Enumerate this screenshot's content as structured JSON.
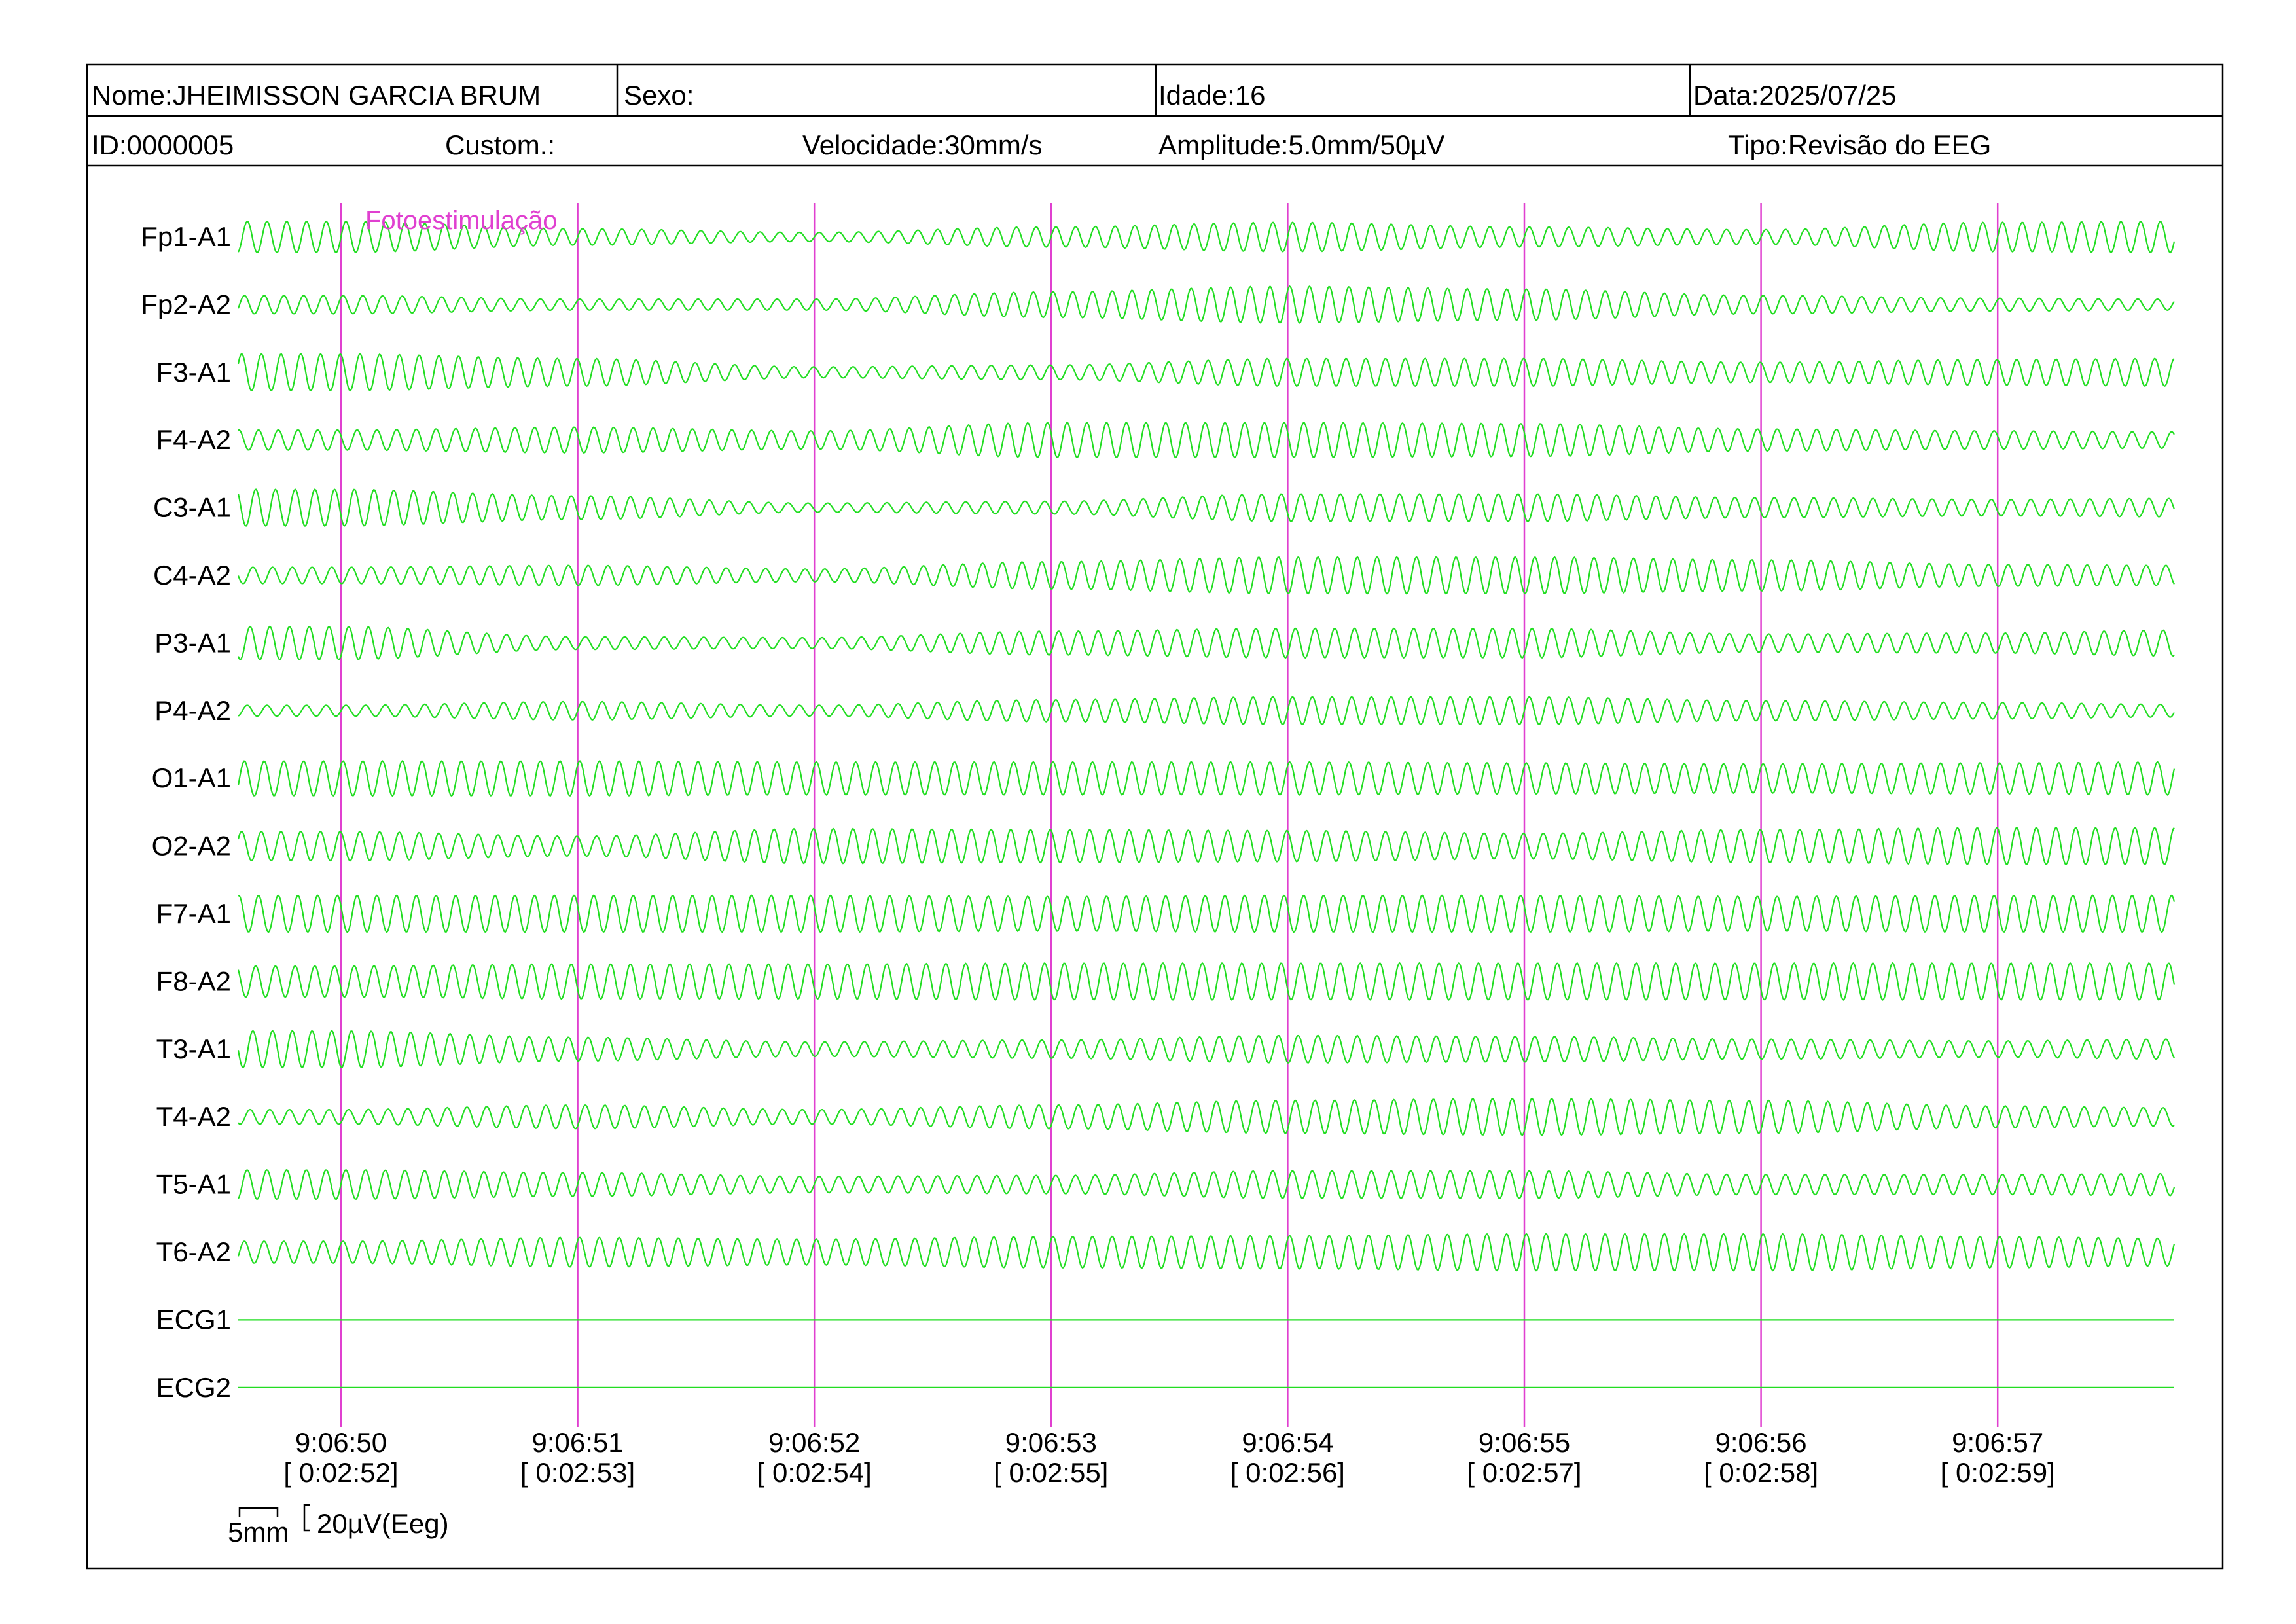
{
  "header": {
    "name": "Nome:JHEIMISSON GARCIA BRUM",
    "sex": "Sexo:",
    "age": "Idade:16",
    "date": "Data:2025/07/25",
    "id": "ID:0000005",
    "custom": "Custom.:",
    "speed": "Velocidade:30mm/s",
    "amplitude": "Amplitude:5.0mm/50µV",
    "type": "Tipo:Revisão do EEG"
  },
  "colors": {
    "trace": "#22dd22",
    "marker": "#e040d0",
    "border": "#000000"
  },
  "scale": {
    "time_bar": "5mm",
    "amp_bar": "20µV(Eeg)"
  },
  "chart_data": {
    "type": "line",
    "title": "",
    "xlabel": "",
    "ylabel": "",
    "grid": false,
    "event": {
      "label": "Fotoestimulação",
      "time": "9:06:50"
    },
    "time_ticks": [
      {
        "clock": "9:06:50",
        "elapsed": "[ 0:02:52]"
      },
      {
        "clock": "9:06:51",
        "elapsed": "[ 0:02:53]"
      },
      {
        "clock": "9:06:52",
        "elapsed": "[ 0:02:54]"
      },
      {
        "clock": "9:06:53",
        "elapsed": "[ 0:02:55]"
      },
      {
        "clock": "9:06:54",
        "elapsed": "[ 0:02:56]"
      },
      {
        "clock": "9:06:55",
        "elapsed": "[ 0:02:57]"
      },
      {
        "clock": "9:06:56",
        "elapsed": "[ 0:02:58]"
      },
      {
        "clock": "9:06:57",
        "elapsed": "[ 0:02:59]"
      }
    ],
    "x_range_seconds": [
      -0.43,
      7.73
    ],
    "wave_frequency_hz": 12,
    "amplitude_breakpoints_seconds": [
      -0.43,
      0,
      1,
      2,
      3,
      4,
      5,
      6,
      7,
      7.73
    ],
    "series": [
      {
        "name": "Fp1-A1",
        "amplitudes": [
          0.85,
          0.85,
          0.45,
          0.25,
          0.55,
          0.8,
          0.55,
          0.4,
          0.8,
          0.85
        ]
      },
      {
        "name": "Fp2-A2",
        "amplitudes": [
          0.5,
          0.5,
          0.3,
          0.3,
          0.7,
          1.0,
          0.85,
          0.5,
          0.35,
          0.3
        ]
      },
      {
        "name": "F3-A1",
        "amplitudes": [
          1.0,
          1.0,
          0.75,
          0.3,
          0.4,
          0.75,
          0.75,
          0.55,
          0.7,
          0.75
        ]
      },
      {
        "name": "F4-A2",
        "amplitudes": [
          0.55,
          0.55,
          0.7,
          0.5,
          0.95,
          0.95,
          0.9,
          0.6,
          0.5,
          0.45
        ]
      },
      {
        "name": "C3-A1",
        "amplitudes": [
          1.0,
          1.0,
          0.65,
          0.25,
          0.35,
          0.75,
          0.75,
          0.55,
          0.45,
          0.5
        ]
      },
      {
        "name": "C4-A2",
        "amplitudes": [
          0.45,
          0.45,
          0.55,
          0.35,
          0.75,
          1.0,
          1.0,
          0.85,
          0.6,
          0.55
        ]
      },
      {
        "name": "P3-A1",
        "amplitudes": [
          0.9,
          0.9,
          0.35,
          0.3,
          0.65,
          0.8,
          0.8,
          0.5,
          0.55,
          0.7
        ]
      },
      {
        "name": "P4-A2",
        "amplitudes": [
          0.3,
          0.3,
          0.5,
          0.3,
          0.6,
          0.75,
          0.75,
          0.55,
          0.45,
          0.35
        ]
      },
      {
        "name": "O1-A1",
        "amplitudes": [
          0.95,
          0.95,
          0.95,
          0.9,
          0.9,
          0.9,
          0.85,
          0.8,
          0.85,
          0.9
        ]
      },
      {
        "name": "O2-A2",
        "amplitudes": [
          0.8,
          0.8,
          0.55,
          0.95,
          0.9,
          0.85,
          0.7,
          0.9,
          1.0,
          1.0
        ]
      },
      {
        "name": "F7-A1",
        "amplitudes": [
          1.0,
          1.0,
          1.0,
          1.0,
          0.95,
          1.0,
          1.0,
          0.95,
          1.0,
          1.0
        ]
      },
      {
        "name": "F8-A2",
        "amplitudes": [
          0.85,
          0.85,
          0.95,
          0.95,
          1.0,
          1.0,
          1.0,
          1.0,
          1.0,
          1.0
        ]
      },
      {
        "name": "T3-A1",
        "amplitudes": [
          1.0,
          1.0,
          0.65,
          0.4,
          0.5,
          0.75,
          0.7,
          0.55,
          0.45,
          0.55
        ]
      },
      {
        "name": "T4-A2",
        "amplitudes": [
          0.4,
          0.4,
          0.65,
          0.4,
          0.65,
          0.9,
          1.0,
          0.9,
          0.6,
          0.5
        ]
      },
      {
        "name": "T5-A1",
        "amplitudes": [
          0.8,
          0.8,
          0.65,
          0.45,
          0.5,
          0.75,
          0.75,
          0.55,
          0.55,
          0.6
        ]
      },
      {
        "name": "T6-A2",
        "amplitudes": [
          0.6,
          0.6,
          0.8,
          0.7,
          0.85,
          0.9,
          1.0,
          1.0,
          0.85,
          0.75
        ]
      },
      {
        "name": "ECG1",
        "amplitudes": [
          0,
          0,
          0,
          0,
          0,
          0,
          0,
          0,
          0,
          0
        ]
      },
      {
        "name": "ECG2",
        "amplitudes": [
          0,
          0,
          0,
          0,
          0,
          0,
          0,
          0,
          0,
          0
        ]
      }
    ]
  }
}
